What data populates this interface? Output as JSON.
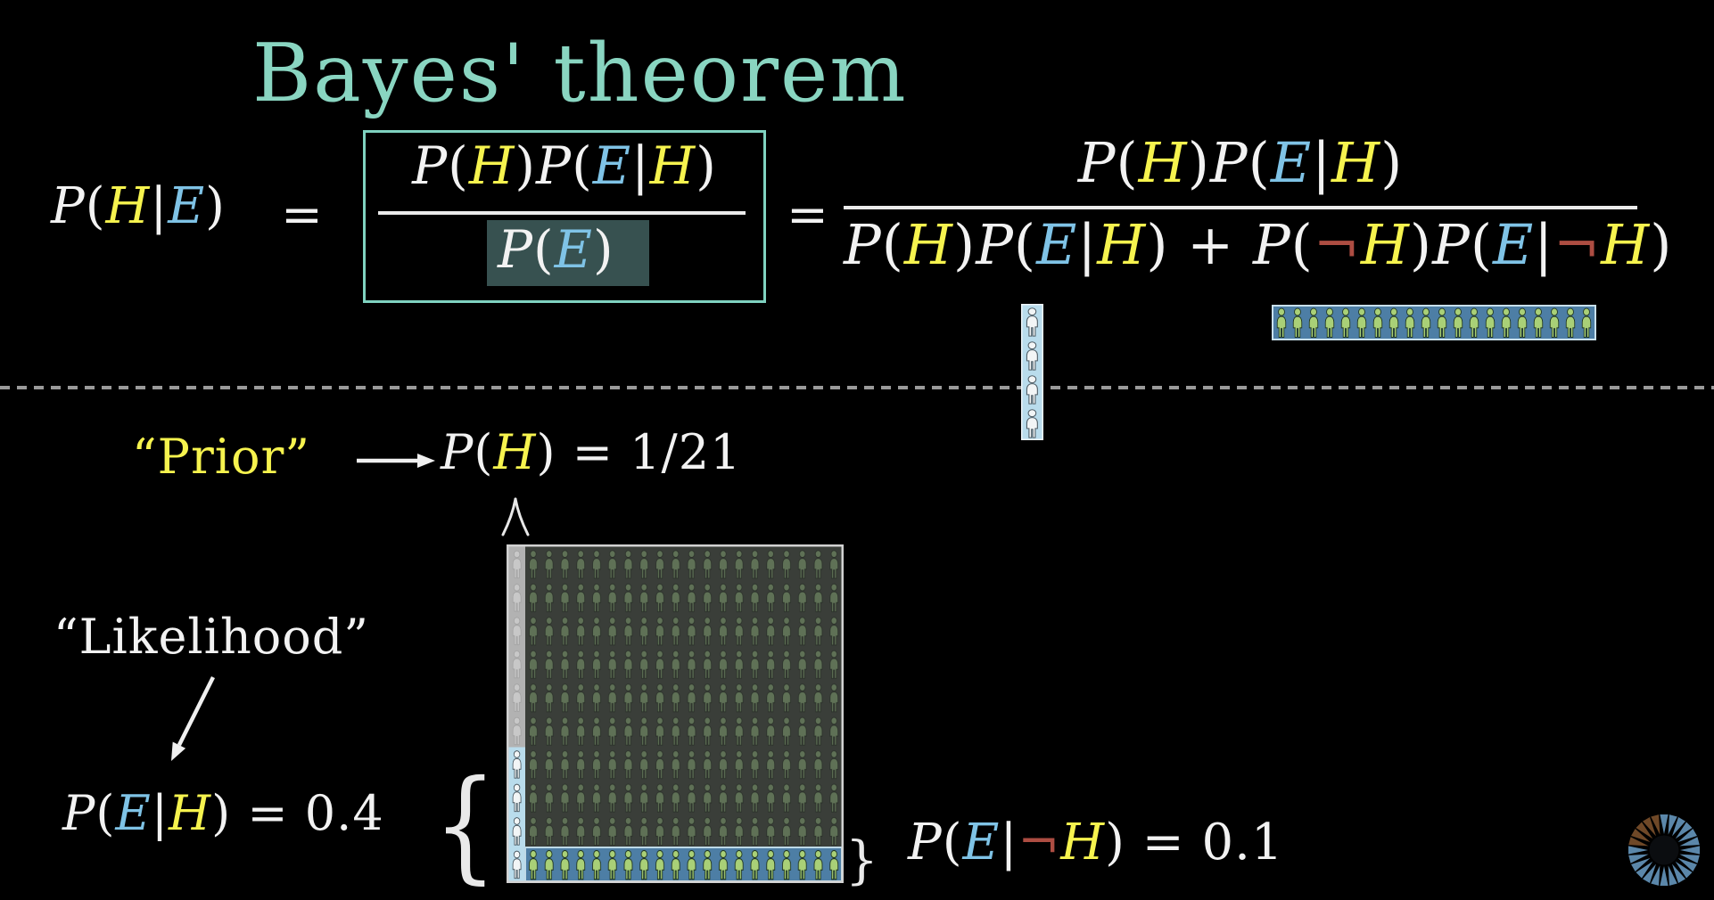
{
  "palette": {
    "w": "#f2f2f2",
    "y": "#f6f34e",
    "b": "#7fc3e6",
    "r": "#ad4d42",
    "teal": "#89d5c1"
  },
  "title": "Bayes' theorem",
  "formula": {
    "equals": "=",
    "lhs": [
      {
        "t": "P",
        "c": "w",
        "i": 1
      },
      {
        "t": "(",
        "c": "w"
      },
      {
        "t": "H",
        "c": "y",
        "i": 1
      },
      {
        "t": "|",
        "c": "w"
      },
      {
        "t": "E",
        "c": "b",
        "i": 1
      },
      {
        "t": ")",
        "c": "w"
      }
    ],
    "boxed": {
      "numerator": [
        {
          "t": "P",
          "c": "w",
          "i": 1
        },
        {
          "t": "(",
          "c": "w"
        },
        {
          "t": "H",
          "c": "y",
          "i": 1
        },
        {
          "t": ")",
          "c": "w"
        },
        {
          "t": "P",
          "c": "w",
          "i": 1
        },
        {
          "t": "(",
          "c": "w"
        },
        {
          "t": "E",
          "c": "b",
          "i": 1
        },
        {
          "t": "|",
          "c": "w"
        },
        {
          "t": "H",
          "c": "y",
          "i": 1
        },
        {
          "t": ")",
          "c": "w"
        }
      ],
      "denominator": [
        {
          "t": "P",
          "c": "w",
          "i": 1
        },
        {
          "t": "(",
          "c": "w"
        },
        {
          "t": "E",
          "c": "b",
          "i": 1
        },
        {
          "t": ")",
          "c": "w"
        }
      ]
    },
    "expanded": {
      "numerator": [
        {
          "t": "P",
          "c": "w",
          "i": 1
        },
        {
          "t": "(",
          "c": "w"
        },
        {
          "t": "H",
          "c": "y",
          "i": 1
        },
        {
          "t": ")",
          "c": "w"
        },
        {
          "t": "P",
          "c": "w",
          "i": 1
        },
        {
          "t": "(",
          "c": "w"
        },
        {
          "t": "E",
          "c": "b",
          "i": 1
        },
        {
          "t": "|",
          "c": "w"
        },
        {
          "t": "H",
          "c": "y",
          "i": 1
        },
        {
          "t": ")",
          "c": "w"
        }
      ],
      "denominator": [
        {
          "t": "P",
          "c": "w",
          "i": 1
        },
        {
          "t": "(",
          "c": "w"
        },
        {
          "t": "H",
          "c": "y",
          "i": 1
        },
        {
          "t": ")",
          "c": "w"
        },
        {
          "t": "P",
          "c": "w",
          "i": 1
        },
        {
          "t": "(",
          "c": "w"
        },
        {
          "t": "E",
          "c": "b",
          "i": 1
        },
        {
          "t": "|",
          "c": "w"
        },
        {
          "t": "H",
          "c": "y",
          "i": 1
        },
        {
          "t": ")",
          "c": "w"
        },
        {
          "t": " + ",
          "c": "w"
        },
        {
          "t": "P",
          "c": "w",
          "i": 1
        },
        {
          "t": "(",
          "c": "w"
        },
        {
          "t": "¬",
          "c": "r"
        },
        {
          "t": "H",
          "c": "y",
          "i": 1
        },
        {
          "t": ")",
          "c": "w"
        },
        {
          "t": "P",
          "c": "w",
          "i": 1
        },
        {
          "t": "(",
          "c": "w"
        },
        {
          "t": "E",
          "c": "b",
          "i": 1
        },
        {
          "t": "|",
          "c": "w"
        },
        {
          "t": "¬",
          "c": "r"
        },
        {
          "t": "H",
          "c": "y",
          "i": 1
        },
        {
          "t": ")",
          "c": "w"
        }
      ]
    }
  },
  "annotations": {
    "prior_label": "“Prior”",
    "prior_formula": [
      {
        "t": "P",
        "c": "w",
        "i": 1
      },
      {
        "t": "(",
        "c": "w"
      },
      {
        "t": "H",
        "c": "y",
        "i": 1
      },
      {
        "t": ")",
        "c": "w"
      },
      {
        "t": " = ",
        "c": "w"
      },
      {
        "t": "1/21",
        "c": "w"
      }
    ],
    "likelihood_label": "“Likelihood”",
    "likelihood_formula": [
      {
        "t": "P",
        "c": "w",
        "i": 1
      },
      {
        "t": "(",
        "c": "w"
      },
      {
        "t": "E",
        "c": "b",
        "i": 1
      },
      {
        "t": "|",
        "c": "w"
      },
      {
        "t": "H",
        "c": "y",
        "i": 1
      },
      {
        "t": ")",
        "c": "w"
      },
      {
        "t": " = ",
        "c": "w"
      },
      {
        "t": "0.4",
        "c": "w"
      }
    ],
    "not_hypothesis_formula": [
      {
        "t": "P",
        "c": "w",
        "i": 1
      },
      {
        "t": "(",
        "c": "w"
      },
      {
        "t": "E",
        "c": "b",
        "i": 1
      },
      {
        "t": "|",
        "c": "w"
      },
      {
        "t": "¬",
        "c": "r"
      },
      {
        "t": "H",
        "c": "y",
        "i": 1
      },
      {
        "t": ")",
        "c": "w"
      },
      {
        "t": " = ",
        "c": "w"
      },
      {
        "t": "0.1",
        "c": "w"
      }
    ],
    "left_brace": "{",
    "right_brace": "}"
  },
  "diagram": {
    "population_grid": {
      "total_columns": 21,
      "h_columns": 1,
      "not_h_columns": 20,
      "rows": 10,
      "h_highlighted_people": 4,
      "not_h_highlighted_rows": 1,
      "colors": {
        "h_strip_bg": "#b2b2b2",
        "h_highlight_bg": "#b9dcec",
        "not_h_bg": "#3a3e39",
        "not_h_highlight_bg": "#4d7ea5",
        "person_dim_green": "#5f7156",
        "person_bright_green": "#a9d077",
        "person_white": "#f2f5f6",
        "frame": "#d2d2d2"
      }
    },
    "h_sample_strip": {
      "people": 4,
      "bg": "#b9dcec"
    },
    "not_h_sample_strip": {
      "people": 20,
      "bg": "#4d7ea5"
    },
    "highlight_box_color": "#375150",
    "box_border_color": "#7fd2c0",
    "dashed_line_color": "#9a9a9a"
  },
  "logo": {
    "name": "3blue1brown-logo",
    "blue": "#5b87aa",
    "brown": "#6f4827"
  }
}
